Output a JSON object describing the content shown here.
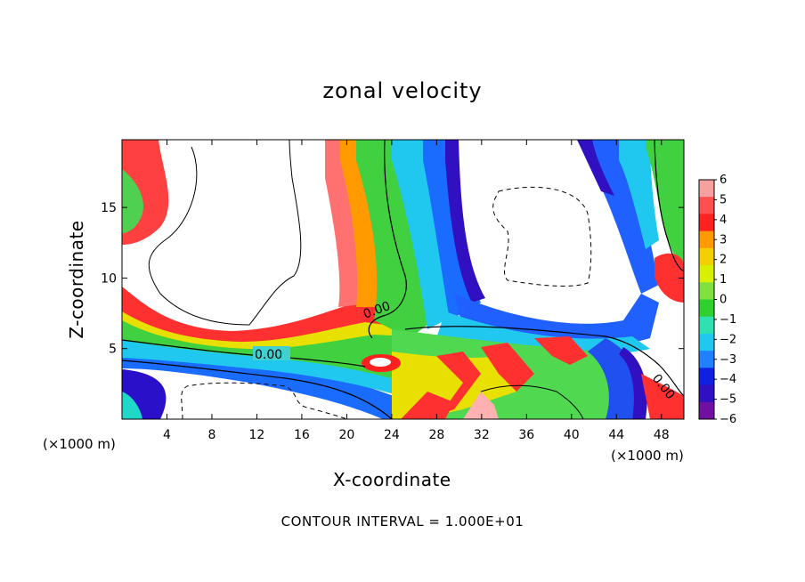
{
  "chart_data": {
    "type": "heatmap",
    "title": "zonal velocity",
    "xlabel": "X-coordinate",
    "ylabel": "Z-coordinate",
    "x_unit_label": "(×1000 m)",
    "x_ticks": [
      4,
      8,
      12,
      16,
      20,
      24,
      28,
      32,
      36,
      40,
      44,
      48
    ],
    "y_ticks": [
      5,
      10,
      15
    ],
    "xlim": [
      0,
      50
    ],
    "ylim": [
      0,
      19.8
    ],
    "footer": "CONTOUR INTERVAL = 1.000E+01",
    "contour_labels": [
      "0.00",
      "0.00",
      "0.00"
    ],
    "colorbar": {
      "labels": [
        "6",
        "5",
        "4",
        "3",
        "2",
        "1",
        "0",
        "-1",
        "-2",
        "-3",
        "-4",
        "-5",
        "-6"
      ],
      "range": [
        -6,
        6
      ],
      "colors": [
        "#f6a0a0",
        "#ff5050",
        "#ff2020",
        "#ff9a00",
        "#f0d000",
        "#d8f000",
        "#80e040",
        "#30d030",
        "#30e0b0",
        "#20c8f0",
        "#2080ff",
        "#1020e0",
        "#3010c0",
        "#7010a0"
      ]
    }
  }
}
